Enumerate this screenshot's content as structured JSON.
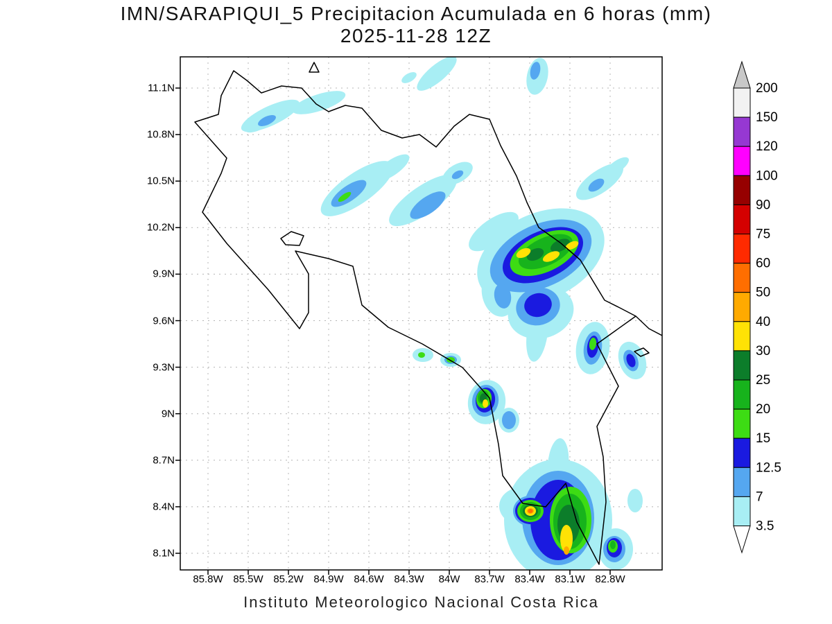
{
  "title": {
    "line1": "IMN/SARAPIQUI_5 Precipitacion Acumulada en 6 horas (mm)",
    "line2": "2025-11-28 12Z"
  },
  "footer": "Instituto Meteorologico Nacional Costa Rica",
  "axes": {
    "y_tick_labels": [
      "11.1N",
      "10.8N",
      "10.5N",
      "10.2N",
      "9.9N",
      "9.6N",
      "9.3N",
      "9N",
      "8.7N",
      "8.4N",
      "8.1N"
    ],
    "x_tick_labels": [
      "85.8W",
      "85.5W",
      "85.2W",
      "84.9W",
      "84.6W",
      "84.3W",
      "84W",
      "83.7W",
      "83.4W",
      "83.1W",
      "82.8W"
    ]
  },
  "colorbar": {
    "labels_top_to_bottom": [
      "200",
      "150",
      "120",
      "100",
      "90",
      "75",
      "60",
      "50",
      "40",
      "30",
      "25",
      "20",
      "15",
      "12.5",
      "7",
      "3.5"
    ],
    "segment_colors_top_to_bottom": [
      "#f2f2f2",
      "#9638d2",
      "#ff00ff",
      "#960000",
      "#d40000",
      "#ff2a00",
      "#ff6e00",
      "#ffaa00",
      "#ffe205",
      "#0c7d2a",
      "#17b31c",
      "#3ddc14",
      "#1a1ae0",
      "#55a7f0",
      "#a8eef4"
    ],
    "arrow_top_color": "#c8c8c8",
    "arrow_bottom_color": "#ffffff"
  },
  "chart_data": {
    "type": "heatmap",
    "title": "IMN/SARAPIQUI_5 Precipitacion Acumulada en 6 horas (mm)",
    "subtitle": "2025-11-28 12Z",
    "units": "mm / 6 h",
    "x_ticks": [
      "85.8W",
      "85.5W",
      "85.2W",
      "84.9W",
      "84.6W",
      "84.3W",
      "84W",
      "83.7W",
      "83.4W",
      "83.1W",
      "82.8W"
    ],
    "y_ticks": [
      "11.1N",
      "10.8N",
      "10.5N",
      "10.2N",
      "9.9N",
      "9.6N",
      "9.3N",
      "9N",
      "8.7N",
      "8.4N",
      "8.1N"
    ],
    "legend_levels_mm": [
      3.5,
      7,
      12.5,
      15,
      20,
      25,
      30,
      40,
      50,
      60,
      75,
      90,
      100,
      120,
      150,
      200
    ],
    "precip_maxima_read_from_map": [
      {
        "approx_location": "10.0N 83.3W",
        "peak_band_mm": "30-40"
      },
      {
        "approx_location": "10.4N 84.8W",
        "peak_band_mm": "15-20"
      },
      {
        "approx_location": "9.1N 83.7W",
        "peak_band_mm": "30-40"
      },
      {
        "approx_location": "8.4N 83.4W",
        "peak_band_mm": "50-60"
      },
      {
        "approx_location": "8.1N 83.1W",
        "peak_band_mm": "40-50"
      },
      {
        "approx_location": "9.3N 82.9W",
        "peak_band_mm": "15-20"
      }
    ]
  }
}
